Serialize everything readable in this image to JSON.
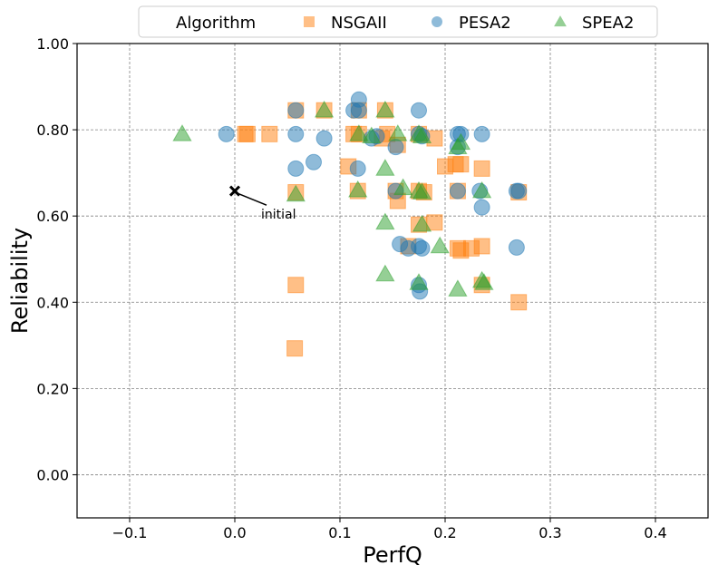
{
  "chart_data": {
    "type": "scatter",
    "xlabel": "PerfQ",
    "ylabel": "Reliability",
    "xlim": [
      -0.15,
      0.45
    ],
    "ylim": [
      -0.1,
      1.0
    ],
    "x_ticks": [
      -0.1,
      0.0,
      0.1,
      0.2,
      0.3,
      0.4
    ],
    "x_tick_labels": [
      "−0.1",
      "0.0",
      "0.1",
      "0.2",
      "0.3",
      "0.4"
    ],
    "y_ticks": [
      0.0,
      0.2,
      0.4,
      0.6,
      0.8,
      1.0
    ],
    "y_tick_labels": [
      "0.00",
      "0.20",
      "0.40",
      "0.60",
      "0.80",
      "1.00"
    ],
    "grid": true,
    "legend": {
      "position": "top",
      "title": "Algorithm",
      "entries": [
        "NSGAII",
        "PESA2",
        "SPEA2"
      ]
    },
    "series": [
      {
        "name": "NSGAII",
        "marker": "square",
        "color": "#ff7f0e",
        "points": [
          [
            0.01,
            0.79
          ],
          [
            0.012,
            0.79
          ],
          [
            0.033,
            0.79
          ],
          [
            0.058,
            0.845
          ],
          [
            0.085,
            0.845
          ],
          [
            0.118,
            0.845
          ],
          [
            0.143,
            0.845
          ],
          [
            0.113,
            0.79
          ],
          [
            0.118,
            0.79
          ],
          [
            0.14,
            0.78
          ],
          [
            0.145,
            0.79
          ],
          [
            0.155,
            0.765
          ],
          [
            0.175,
            0.79
          ],
          [
            0.19,
            0.78
          ],
          [
            0.108,
            0.715
          ],
          [
            0.2,
            0.715
          ],
          [
            0.21,
            0.72
          ],
          [
            0.215,
            0.72
          ],
          [
            0.235,
            0.71
          ],
          [
            0.058,
            0.655
          ],
          [
            0.117,
            0.658
          ],
          [
            0.153,
            0.658
          ],
          [
            0.155,
            0.635
          ],
          [
            0.175,
            0.658
          ],
          [
            0.18,
            0.655
          ],
          [
            0.212,
            0.658
          ],
          [
            0.27,
            0.655
          ],
          [
            0.175,
            0.58
          ],
          [
            0.19,
            0.585
          ],
          [
            0.165,
            0.53
          ],
          [
            0.212,
            0.525
          ],
          [
            0.215,
            0.52
          ],
          [
            0.225,
            0.525
          ],
          [
            0.235,
            0.53
          ],
          [
            0.058,
            0.44
          ],
          [
            0.235,
            0.44
          ],
          [
            0.27,
            0.4
          ],
          [
            0.057,
            0.293
          ]
        ]
      },
      {
        "name": "PESA2",
        "marker": "circle",
        "color": "#1f77b4",
        "points": [
          [
            -0.008,
            0.79
          ],
          [
            0.058,
            0.79
          ],
          [
            0.058,
            0.845
          ],
          [
            0.085,
            0.78
          ],
          [
            0.058,
            0.71
          ],
          [
            0.075,
            0.725
          ],
          [
            0.117,
            0.71
          ],
          [
            0.118,
            0.87
          ],
          [
            0.113,
            0.845
          ],
          [
            0.118,
            0.845
          ],
          [
            0.175,
            0.845
          ],
          [
            0.13,
            0.78
          ],
          [
            0.135,
            0.785
          ],
          [
            0.153,
            0.76
          ],
          [
            0.175,
            0.79
          ],
          [
            0.178,
            0.785
          ],
          [
            0.212,
            0.79
          ],
          [
            0.215,
            0.79
          ],
          [
            0.235,
            0.79
          ],
          [
            0.212,
            0.76
          ],
          [
            0.153,
            0.658
          ],
          [
            0.212,
            0.658
          ],
          [
            0.233,
            0.658
          ],
          [
            0.268,
            0.658
          ],
          [
            0.27,
            0.658
          ],
          [
            0.235,
            0.62
          ],
          [
            0.157,
            0.535
          ],
          [
            0.165,
            0.525
          ],
          [
            0.175,
            0.53
          ],
          [
            0.178,
            0.525
          ],
          [
            0.268,
            0.527
          ],
          [
            0.175,
            0.44
          ],
          [
            0.176,
            0.425
          ]
        ]
      },
      {
        "name": "SPEA2",
        "marker": "triangle",
        "color": "#2ca02c",
        "points": [
          [
            -0.05,
            0.79
          ],
          [
            0.058,
            0.65
          ],
          [
            0.085,
            0.845
          ],
          [
            0.143,
            0.845
          ],
          [
            0.118,
            0.79
          ],
          [
            0.13,
            0.785
          ],
          [
            0.155,
            0.79
          ],
          [
            0.175,
            0.79
          ],
          [
            0.178,
            0.785
          ],
          [
            0.212,
            0.76
          ],
          [
            0.215,
            0.77
          ],
          [
            0.143,
            0.71
          ],
          [
            0.117,
            0.66
          ],
          [
            0.16,
            0.665
          ],
          [
            0.175,
            0.658
          ],
          [
            0.178,
            0.655
          ],
          [
            0.235,
            0.658
          ],
          [
            0.143,
            0.585
          ],
          [
            0.178,
            0.58
          ],
          [
            0.195,
            0.53
          ],
          [
            0.143,
            0.465
          ],
          [
            0.175,
            0.445
          ],
          [
            0.212,
            0.43
          ],
          [
            0.235,
            0.45
          ],
          [
            0.237,
            0.445
          ]
        ]
      }
    ],
    "annotations": [
      {
        "text": "initial",
        "point": [
          0.0,
          0.658
        ],
        "text_at": [
          0.025,
          0.6
        ]
      }
    ]
  }
}
